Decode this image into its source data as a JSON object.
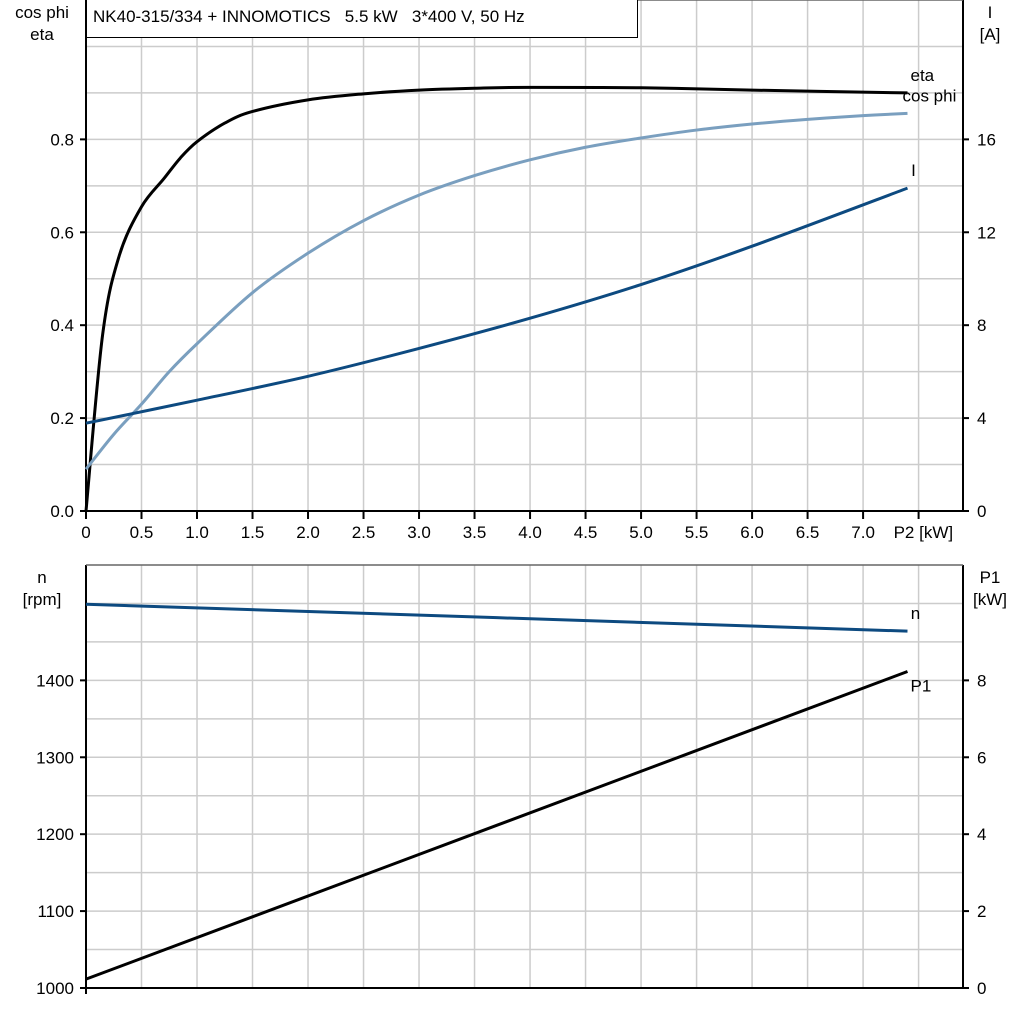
{
  "title": "NK40-315/334 + INNOMOTICS   5.5 kW   3*400 V, 50 Hz",
  "colors": {
    "eta": "#000000",
    "cos_phi": "#7a9fbf",
    "I": "#0d4a80",
    "n": "#0d4a80",
    "P1": "#000000",
    "grid": "#cccccc"
  },
  "chart_data": [
    {
      "type": "line",
      "xlabel": "P2 [kW]",
      "ylabel_left": [
        "cos phi",
        "eta"
      ],
      "ylabel_right": [
        "I",
        "[A]"
      ],
      "xlim": [
        0,
        7.9
      ],
      "ylim_left": [
        0,
        1.1
      ],
      "ylim_right": [
        0,
        22
      ],
      "x_ticks": [
        "0",
        "0.5",
        "1.0",
        "1.5",
        "2.0",
        "2.5",
        "3.0",
        "3.5",
        "4.0",
        "4.5",
        "5.0",
        "5.5",
        "6.0",
        "6.5",
        "7.0"
      ],
      "y_left_ticks": [
        "0.0",
        "0.2",
        "0.4",
        "0.6",
        "0.8"
      ],
      "y_right_ticks": [
        "0",
        "4",
        "8",
        "12",
        "16"
      ],
      "grid": true,
      "series": [
        {
          "name": "eta",
          "axis": "left",
          "x": [
            0,
            0.15,
            0.3,
            0.5,
            0.7,
            0.85,
            1.0,
            1.25,
            1.5,
            2.0,
            2.5,
            3.0,
            3.5,
            4.0,
            5.0,
            6.0,
            7.4
          ],
          "y": [
            0,
            0.38,
            0.55,
            0.655,
            0.715,
            0.76,
            0.795,
            0.835,
            0.86,
            0.885,
            0.898,
            0.906,
            0.91,
            0.912,
            0.911,
            0.906,
            0.9
          ]
        },
        {
          "name": "cos phi",
          "axis": "left",
          "x": [
            0,
            0.25,
            0.5,
            0.75,
            1.0,
            1.5,
            2.0,
            2.5,
            3.0,
            3.5,
            4.0,
            4.5,
            5.0,
            5.5,
            6.0,
            6.5,
            7.0,
            7.4
          ],
          "y": [
            0.09,
            0.165,
            0.23,
            0.3,
            0.36,
            0.47,
            0.555,
            0.625,
            0.68,
            0.722,
            0.756,
            0.783,
            0.803,
            0.82,
            0.833,
            0.843,
            0.851,
            0.856
          ]
        },
        {
          "name": "I",
          "axis": "right",
          "x": [
            0,
            1.0,
            2.0,
            3.0,
            4.0,
            5.0,
            6.0,
            7.4
          ],
          "y": [
            3.78,
            4.77,
            5.8,
            7.0,
            8.3,
            9.75,
            11.4,
            13.9
          ]
        }
      ]
    },
    {
      "type": "line",
      "ylabel_left": [
        "n",
        "[rpm]"
      ],
      "ylabel_right": [
        "P1",
        "[kW]"
      ],
      "xlim": [
        0,
        7.9
      ],
      "ylim_left": [
        1000,
        1550
      ],
      "ylim_right": [
        0,
        11
      ],
      "y_left_ticks": [
        "1000",
        "1100",
        "1200",
        "1300",
        "1400"
      ],
      "y_right_ticks": [
        "0",
        "2",
        "4",
        "6",
        "8"
      ],
      "grid": true,
      "series": [
        {
          "name": "n",
          "axis": "left",
          "x": [
            0,
            7.4
          ],
          "y": [
            1499,
            1464
          ]
        },
        {
          "name": "P1",
          "axis": "right",
          "x": [
            0,
            7.4
          ],
          "y": [
            0.23,
            8.23
          ]
        }
      ]
    }
  ]
}
